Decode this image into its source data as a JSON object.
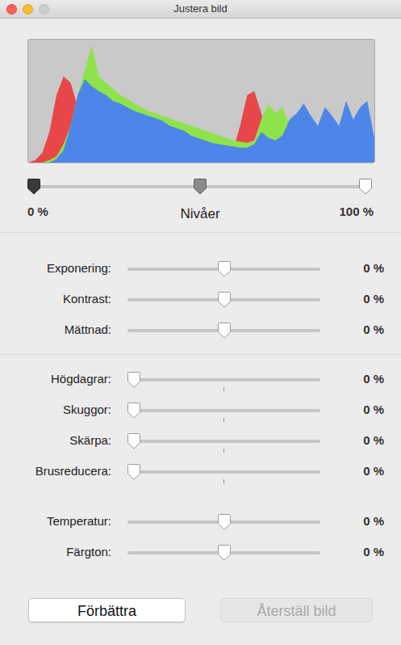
{
  "window": {
    "title": "Justera bild"
  },
  "chart_data": {
    "type": "area",
    "xlim": [
      0,
      49
    ],
    "ylim": [
      0,
      100
    ],
    "tick_labels": false,
    "grid": false,
    "series": [
      {
        "color": "#e8474a",
        "values": [
          0,
          2,
          8,
          25,
          55,
          70,
          65,
          45,
          30,
          22,
          18,
          15,
          14,
          13,
          12,
          11,
          10,
          10,
          9,
          9,
          8,
          8,
          8,
          7,
          7,
          7,
          7,
          7,
          8,
          10,
          30,
          55,
          58,
          40,
          15,
          10,
          12,
          28,
          20,
          10,
          8,
          9,
          10,
          8,
          12,
          15,
          10,
          8,
          6,
          4
        ]
      },
      {
        "color": "#8fe34a",
        "values": [
          0,
          0,
          0,
          2,
          5,
          15,
          30,
          55,
          75,
          95,
          70,
          65,
          60,
          55,
          52,
          48,
          45,
          42,
          40,
          38,
          36,
          34,
          32,
          30,
          28,
          26,
          24,
          22,
          20,
          18,
          17,
          16,
          18,
          35,
          48,
          40,
          45,
          30,
          25,
          22,
          20,
          25,
          22,
          20,
          24,
          26,
          22,
          20,
          18,
          10
        ]
      },
      {
        "color": "#4d86e8",
        "values": [
          0,
          0,
          0,
          0,
          3,
          10,
          30,
          55,
          68,
          62,
          58,
          55,
          50,
          48,
          45,
          42,
          40,
          38,
          36,
          34,
          30,
          28,
          26,
          22,
          20,
          18,
          16,
          15,
          14,
          13,
          12,
          12,
          15,
          25,
          20,
          18,
          22,
          35,
          40,
          48,
          38,
          30,
          45,
          38,
          30,
          50,
          35,
          45,
          50,
          20
        ]
      }
    ]
  },
  "levels": {
    "label": "Nivåer",
    "min_text": "0 %",
    "max_text": "100 %",
    "range": [
      0,
      100
    ],
    "black": 0,
    "mid": 50,
    "white": 100
  },
  "slider_groups": [
    {
      "range": [
        -100,
        100
      ],
      "sliders": [
        {
          "label": "Exponering:",
          "value": 0,
          "text": "0 %"
        },
        {
          "label": "Kontrast:",
          "value": 0,
          "text": "0 %"
        },
        {
          "label": "Mättnad:",
          "value": 0,
          "text": "0 %"
        }
      ]
    },
    {
      "range": [
        0,
        100
      ],
      "sliders": [
        {
          "label": "Högdagrar:",
          "value": 0,
          "text": "0 %"
        },
        {
          "label": "Skuggor:",
          "value": 0,
          "text": "0 %"
        },
        {
          "label": "Skärpa:",
          "value": 0,
          "text": "0 %"
        },
        {
          "label": "Brusreducera:",
          "value": 0,
          "text": "0 %"
        }
      ]
    },
    {
      "range": [
        -100,
        100
      ],
      "sliders": [
        {
          "label": "Temperatur:",
          "value": 0,
          "text": "0 %"
        },
        {
          "label": "Färgton:",
          "value": 0,
          "text": "0 %"
        }
      ]
    }
  ],
  "buttons": [
    {
      "text": "Förbättra",
      "enabled": true
    },
    {
      "text": "Återställ bild",
      "enabled": false
    }
  ]
}
